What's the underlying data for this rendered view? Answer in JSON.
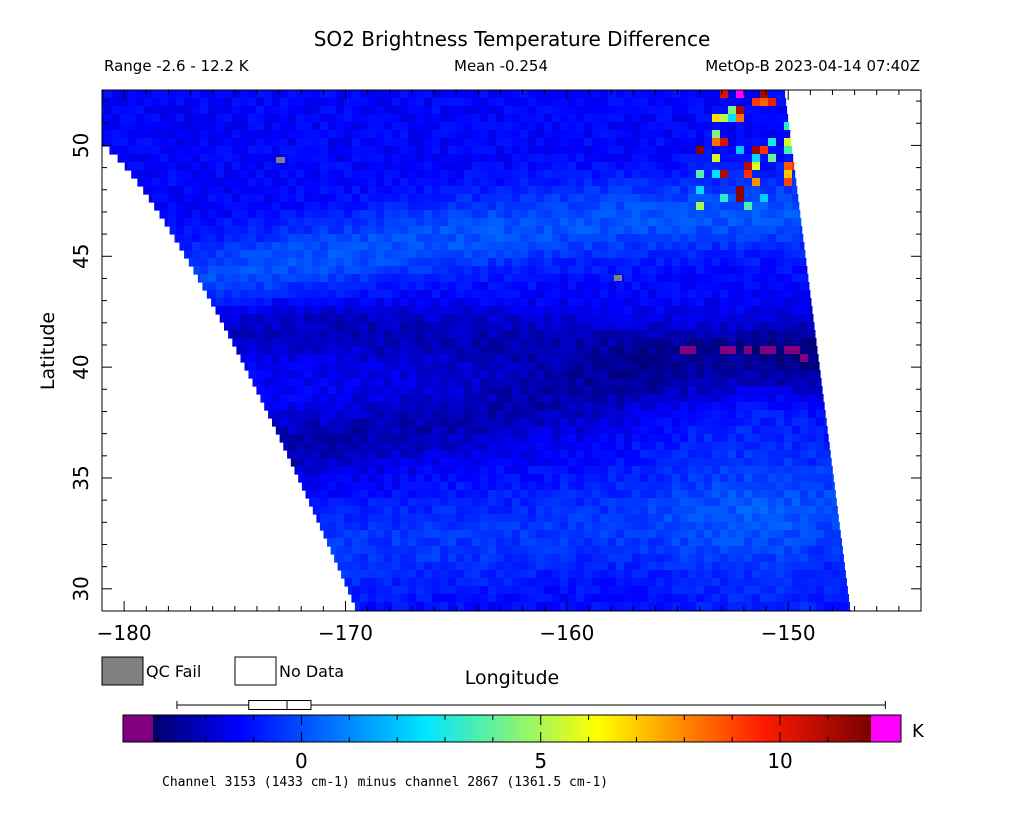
{
  "chart_data": {
    "type": "heatmap",
    "title": "SO2 Brightness Temperature Difference",
    "range_text": "Range -2.6 - 12.2 K",
    "mean_text": "Mean -0.254",
    "satellite_text": "MetOp-B 2023-04-14 07:40Z",
    "xlabel": "Longitude",
    "ylabel": "Latitude",
    "xlim": [
      -181,
      -144
    ],
    "ylim": [
      29,
      52.5
    ],
    "x_ticks": [
      -180,
      -170,
      -160,
      -150
    ],
    "y_ticks": [
      30,
      35,
      40,
      45,
      50
    ],
    "legend": [
      {
        "label": "QC Fail",
        "color": "#808080"
      },
      {
        "label": "No Data",
        "color": "#ffffff"
      }
    ],
    "colorbar": {
      "min": -3.1,
      "max": 11.9,
      "ticks": [
        0,
        5,
        10
      ],
      "unit": "K",
      "under_color": "#800080",
      "over_color": "#ff00ff"
    },
    "boxplot": {
      "whisker_low": -2.6,
      "q1": -1.1,
      "median": -0.3,
      "q3": 0.2,
      "whisker_high": 12.2
    },
    "footnote": "Channel 3153 (1433 cm-1) minus channel 2867 (1361.5 cm-1)"
  }
}
